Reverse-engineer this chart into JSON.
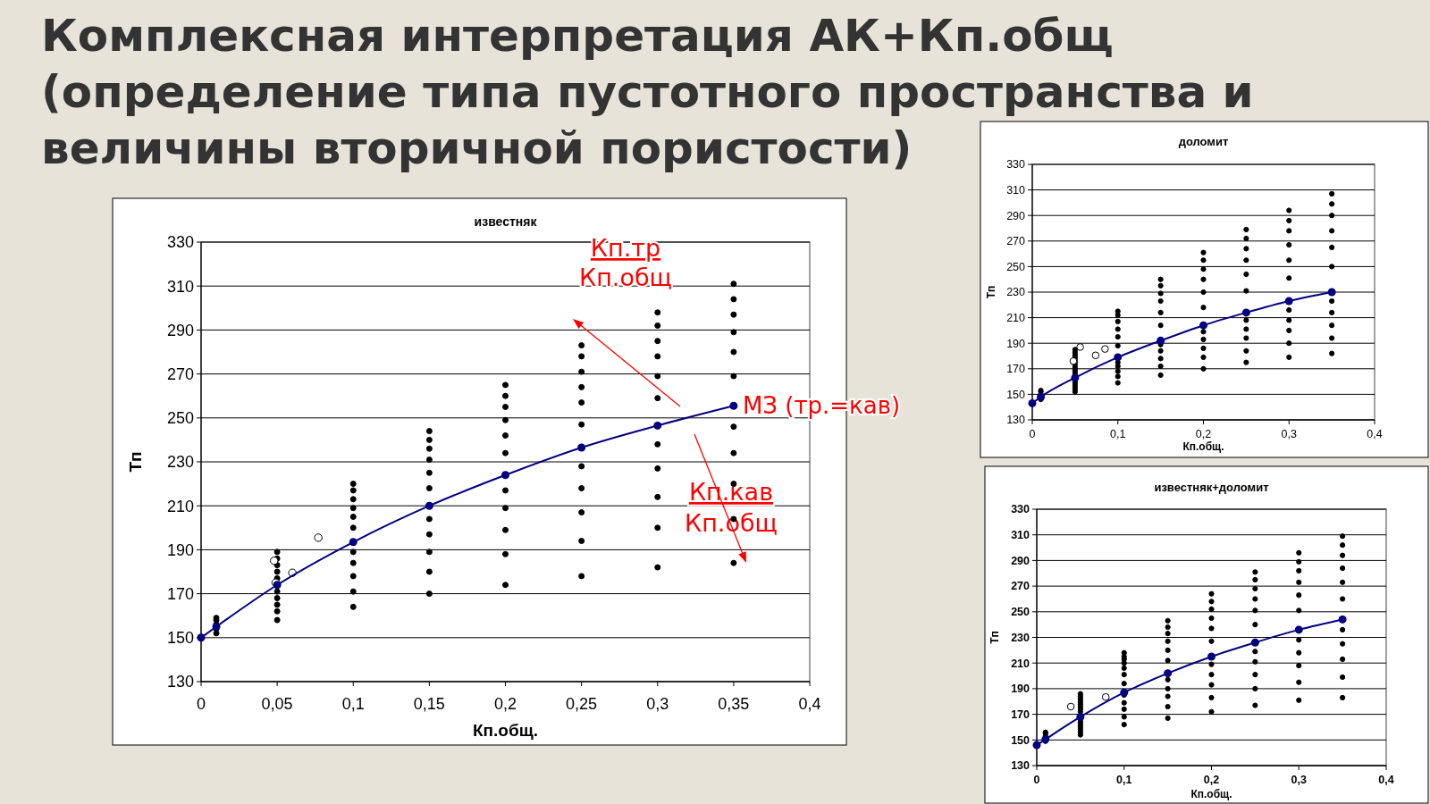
{
  "chart_data": [
    {
      "type": "scatter",
      "title": "Комплексная интерпретация АК+Кп.общ\n(определение типа пустотного пространства и\nвеличины вторичной пористости)",
      "subtitle": "известняк",
      "xlabel": "Кп.общ.",
      "ylabel": "Тп",
      "xlim": [
        0,
        0.4
      ],
      "ylim": [
        130,
        330
      ],
      "xticks": [
        {
          "value": 0,
          "label": "0"
        },
        {
          "value": 0.05,
          "label": "0,05"
        },
        {
          "value": 0.1,
          "label": "0,1"
        },
        {
          "value": 0.15,
          "label": "0,15"
        },
        {
          "value": 0.2,
          "label": "0,2"
        },
        {
          "value": 0.25,
          "label": "0,25"
        },
        {
          "value": 0.3,
          "label": "0,3"
        },
        {
          "value": 0.35,
          "label": "0,35"
        },
        {
          "value": 0.4,
          "label": "0,4"
        }
      ],
      "yticks": [
        130,
        150,
        170,
        190,
        210,
        230,
        250,
        270,
        290,
        310,
        330
      ],
      "grid": "y",
      "series": [
        {
          "type": "scatter",
          "color": "#000000",
          "marker": "circle",
          "x": [
            0.01,
            0.01,
            0.01,
            0.01,
            0.01,
            0.05,
            0.05,
            0.05,
            0.05,
            0.05,
            0.05,
            0.05,
            0.05,
            0.05,
            0.05,
            0.1,
            0.1,
            0.1,
            0.1,
            0.1,
            0.1,
            0.1,
            0.1,
            0.1,
            0.1,
            0.1,
            0.15,
            0.15,
            0.15,
            0.15,
            0.15,
            0.15,
            0.15,
            0.15,
            0.15,
            0.15,
            0.15,
            0.2,
            0.2,
            0.2,
            0.2,
            0.2,
            0.2,
            0.2,
            0.2,
            0.2,
            0.2,
            0.2,
            0.25,
            0.25,
            0.25,
            0.25,
            0.25,
            0.25,
            0.25,
            0.25,
            0.25,
            0.25,
            0.25,
            0.3,
            0.3,
            0.3,
            0.3,
            0.3,
            0.3,
            0.3,
            0.3,
            0.3,
            0.3,
            0.3,
            0.35,
            0.35,
            0.35,
            0.35,
            0.35,
            0.35,
            0.35,
            0.35,
            0.35,
            0.35,
            0.35
          ],
          "values": [
            152,
            154,
            156,
            158,
            159,
            189,
            186,
            183,
            180,
            177,
            171,
            168,
            165,
            162,
            158,
            220,
            217,
            213,
            209,
            205,
            200,
            189,
            184,
            178,
            171,
            164,
            244,
            240,
            236,
            231,
            225,
            218,
            204,
            197,
            189,
            180,
            170,
            265,
            260,
            255,
            249,
            242,
            234,
            217,
            209,
            199,
            188,
            174,
            283,
            278,
            271,
            264,
            257,
            247,
            228,
            218,
            207,
            194,
            178,
            298,
            292,
            285,
            278,
            269,
            259,
            238,
            227,
            214,
            200,
            182,
            311,
            304,
            297,
            289,
            280,
            269,
            246,
            234,
            220,
            204,
            184
          ]
        },
        {
          "type": "scatter",
          "color": "#ffffff",
          "marker": "circle",
          "x": [
            0.048,
            0.049,
            0.06,
            0.077
          ],
          "values": [
            185,
            175,
            179.5,
            195.5
          ]
        },
        {
          "type": "line",
          "color": "#000080",
          "marker": "circle",
          "x": [
            0,
            0.01,
            0.05,
            0.1,
            0.15,
            0.2,
            0.25,
            0.3,
            0.35
          ],
          "values": [
            150,
            155,
            174,
            193.5,
            210,
            224,
            236.5,
            246.5,
            255.5
          ]
        }
      ],
      "annotations": [
        {
          "text": "МЗ (тр.=кав)",
          "x": 0.35,
          "y": 255.5
        },
        "Кп.тр",
        "Кп.общ",
        "Кп.кав",
        "Кп.общ"
      ]
    },
    {
      "type": "scatter",
      "title": "доломит",
      "xlabel": "Кп.общ.",
      "ylabel": "Тп",
      "xlim": [
        0,
        0.4
      ],
      "ylim": [
        130,
        330
      ],
      "xticks": [
        0,
        {
          "value": 0.1,
          "label": "0,1"
        },
        {
          "value": 0.2,
          "label": "0,2"
        },
        {
          "value": 0.3,
          "label": "0,3"
        },
        {
          "value": 0.4,
          "label": "0,4"
        }
      ],
      "yticks": [
        130,
        150,
        170,
        190,
        210,
        230,
        250,
        270,
        290,
        310,
        330
      ],
      "grid": "y",
      "series": [
        {
          "type": "scatter",
          "color": "#000000",
          "marker": "circle",
          "x": [
            0.01,
            0.01,
            0.01,
            0.01,
            0.05,
            0.05,
            0.05,
            0.05,
            0.05,
            0.05,
            0.05,
            0.05,
            0.05,
            0.05,
            0.05,
            0.05,
            0.05,
            0.05,
            0.05,
            0.05,
            0.1,
            0.1,
            0.1,
            0.1,
            0.1,
            0.1,
            0.1,
            0.1,
            0.1,
            0.1,
            0.1,
            0.15,
            0.15,
            0.15,
            0.15,
            0.15,
            0.15,
            0.15,
            0.15,
            0.15,
            0.15,
            0.15,
            0.2,
            0.2,
            0.2,
            0.2,
            0.2,
            0.2,
            0.2,
            0.2,
            0.2,
            0.2,
            0.2,
            0.25,
            0.25,
            0.25,
            0.25,
            0.25,
            0.25,
            0.25,
            0.25,
            0.25,
            0.25,
            0.25,
            0.3,
            0.3,
            0.3,
            0.3,
            0.3,
            0.3,
            0.3,
            0.3,
            0.3,
            0.3,
            0.3,
            0.35,
            0.35,
            0.35,
            0.35,
            0.35,
            0.35,
            0.35,
            0.35,
            0.35,
            0.35,
            0.35
          ],
          "values": [
            146,
            150,
            152,
            153,
            185,
            183,
            181,
            179,
            177,
            175,
            173,
            171,
            169,
            167,
            165,
            160,
            158,
            156,
            154,
            152,
            215,
            212,
            207,
            201,
            195,
            188,
            175,
            172,
            168,
            164,
            159,
            240,
            235,
            229,
            223,
            214,
            204,
            189,
            184,
            178,
            172,
            165,
            261,
            255,
            248,
            240,
            230,
            218,
            199,
            193,
            186,
            179,
            170,
            279,
            272,
            264,
            255,
            244,
            231,
            208,
            201,
            194,
            184,
            175,
            294,
            286,
            278,
            267,
            255,
            241,
            216,
            208,
            200,
            190,
            179,
            307,
            299,
            290,
            278,
            265,
            250,
            223,
            214,
            204,
            194,
            182
          ]
        },
        {
          "type": "scatter",
          "color": "#ffffff",
          "marker": "circle",
          "x": [
            0.048,
            0.056,
            0.074,
            0.085
          ],
          "values": [
            176,
            187,
            180.5,
            185.5
          ]
        },
        {
          "type": "line",
          "color": "#000080",
          "marker": "circle",
          "x": [
            0,
            0.01,
            0.05,
            0.1,
            0.15,
            0.2,
            0.25,
            0.3,
            0.35
          ],
          "values": [
            143,
            148,
            163,
            179,
            192,
            204,
            214,
            223,
            230
          ]
        }
      ]
    },
    {
      "type": "scatter",
      "title": "известняк+доломит",
      "xlabel": "Кп.общ.",
      "ylabel": "Тп",
      "xlim": [
        0,
        0.4
      ],
      "ylim": [
        130,
        330
      ],
      "xticks": [
        0,
        {
          "value": 0.1,
          "label": "0,1"
        },
        {
          "value": 0.2,
          "label": "0,2"
        },
        {
          "value": 0.3,
          "label": "0,3"
        },
        {
          "value": 0.4,
          "label": "0,4"
        }
      ],
      "yticks": [
        130,
        150,
        170,
        190,
        210,
        230,
        250,
        270,
        290,
        310,
        330
      ],
      "grid": "y",
      "series": [
        {
          "type": "scatter",
          "color": "#000000",
          "marker": "circle",
          "x": [
            0.01,
            0.01,
            0.01,
            0.01,
            0.05,
            0.05,
            0.05,
            0.05,
            0.05,
            0.05,
            0.05,
            0.05,
            0.05,
            0.05,
            0.05,
            0.05,
            0.05,
            0.05,
            0.05,
            0.1,
            0.1,
            0.1,
            0.1,
            0.1,
            0.1,
            0.1,
            0.1,
            0.1,
            0.1,
            0.1,
            0.1,
            0.15,
            0.15,
            0.15,
            0.15,
            0.15,
            0.15,
            0.15,
            0.15,
            0.15,
            0.15,
            0.15,
            0.2,
            0.2,
            0.2,
            0.2,
            0.2,
            0.2,
            0.2,
            0.2,
            0.2,
            0.2,
            0.2,
            0.25,
            0.25,
            0.25,
            0.25,
            0.25,
            0.25,
            0.25,
            0.25,
            0.25,
            0.25,
            0.25,
            0.3,
            0.3,
            0.3,
            0.3,
            0.3,
            0.3,
            0.3,
            0.3,
            0.3,
            0.3,
            0.3,
            0.35,
            0.35,
            0.35,
            0.35,
            0.35,
            0.35,
            0.35,
            0.35,
            0.35,
            0.35,
            0.35
          ],
          "values": [
            149,
            153,
            155,
            156,
            186,
            184,
            182,
            180,
            178,
            176,
            174,
            172,
            166,
            164,
            162,
            160,
            158,
            156,
            154,
            218,
            215,
            213,
            210,
            206,
            201,
            194,
            185,
            179,
            174,
            168,
            162,
            243,
            238,
            233,
            227,
            220,
            212,
            197,
            190,
            184,
            176,
            167,
            264,
            258,
            252,
            245,
            237,
            227,
            209,
            201,
            193,
            183,
            172,
            281,
            275,
            268,
            260,
            251,
            240,
            219,
            211,
            201,
            190,
            177,
            296,
            289,
            282,
            273,
            263,
            251,
            228,
            218,
            208,
            195,
            181,
            309,
            302,
            294,
            284,
            273,
            260,
            236,
            225,
            213,
            199,
            183
          ]
        },
        {
          "type": "scatter",
          "color": "#ffffff",
          "marker": "circle",
          "x": [
            0.039,
            0.079
          ],
          "values": [
            176,
            183.5
          ]
        },
        {
          "type": "line",
          "color": "#000080",
          "marker": "circle",
          "x": [
            0,
            0.01,
            0.05,
            0.1,
            0.15,
            0.2,
            0.25,
            0.3,
            0.35
          ],
          "values": [
            146,
            150.5,
            168,
            187,
            202,
            215,
            226,
            236,
            244
          ]
        }
      ]
    }
  ]
}
